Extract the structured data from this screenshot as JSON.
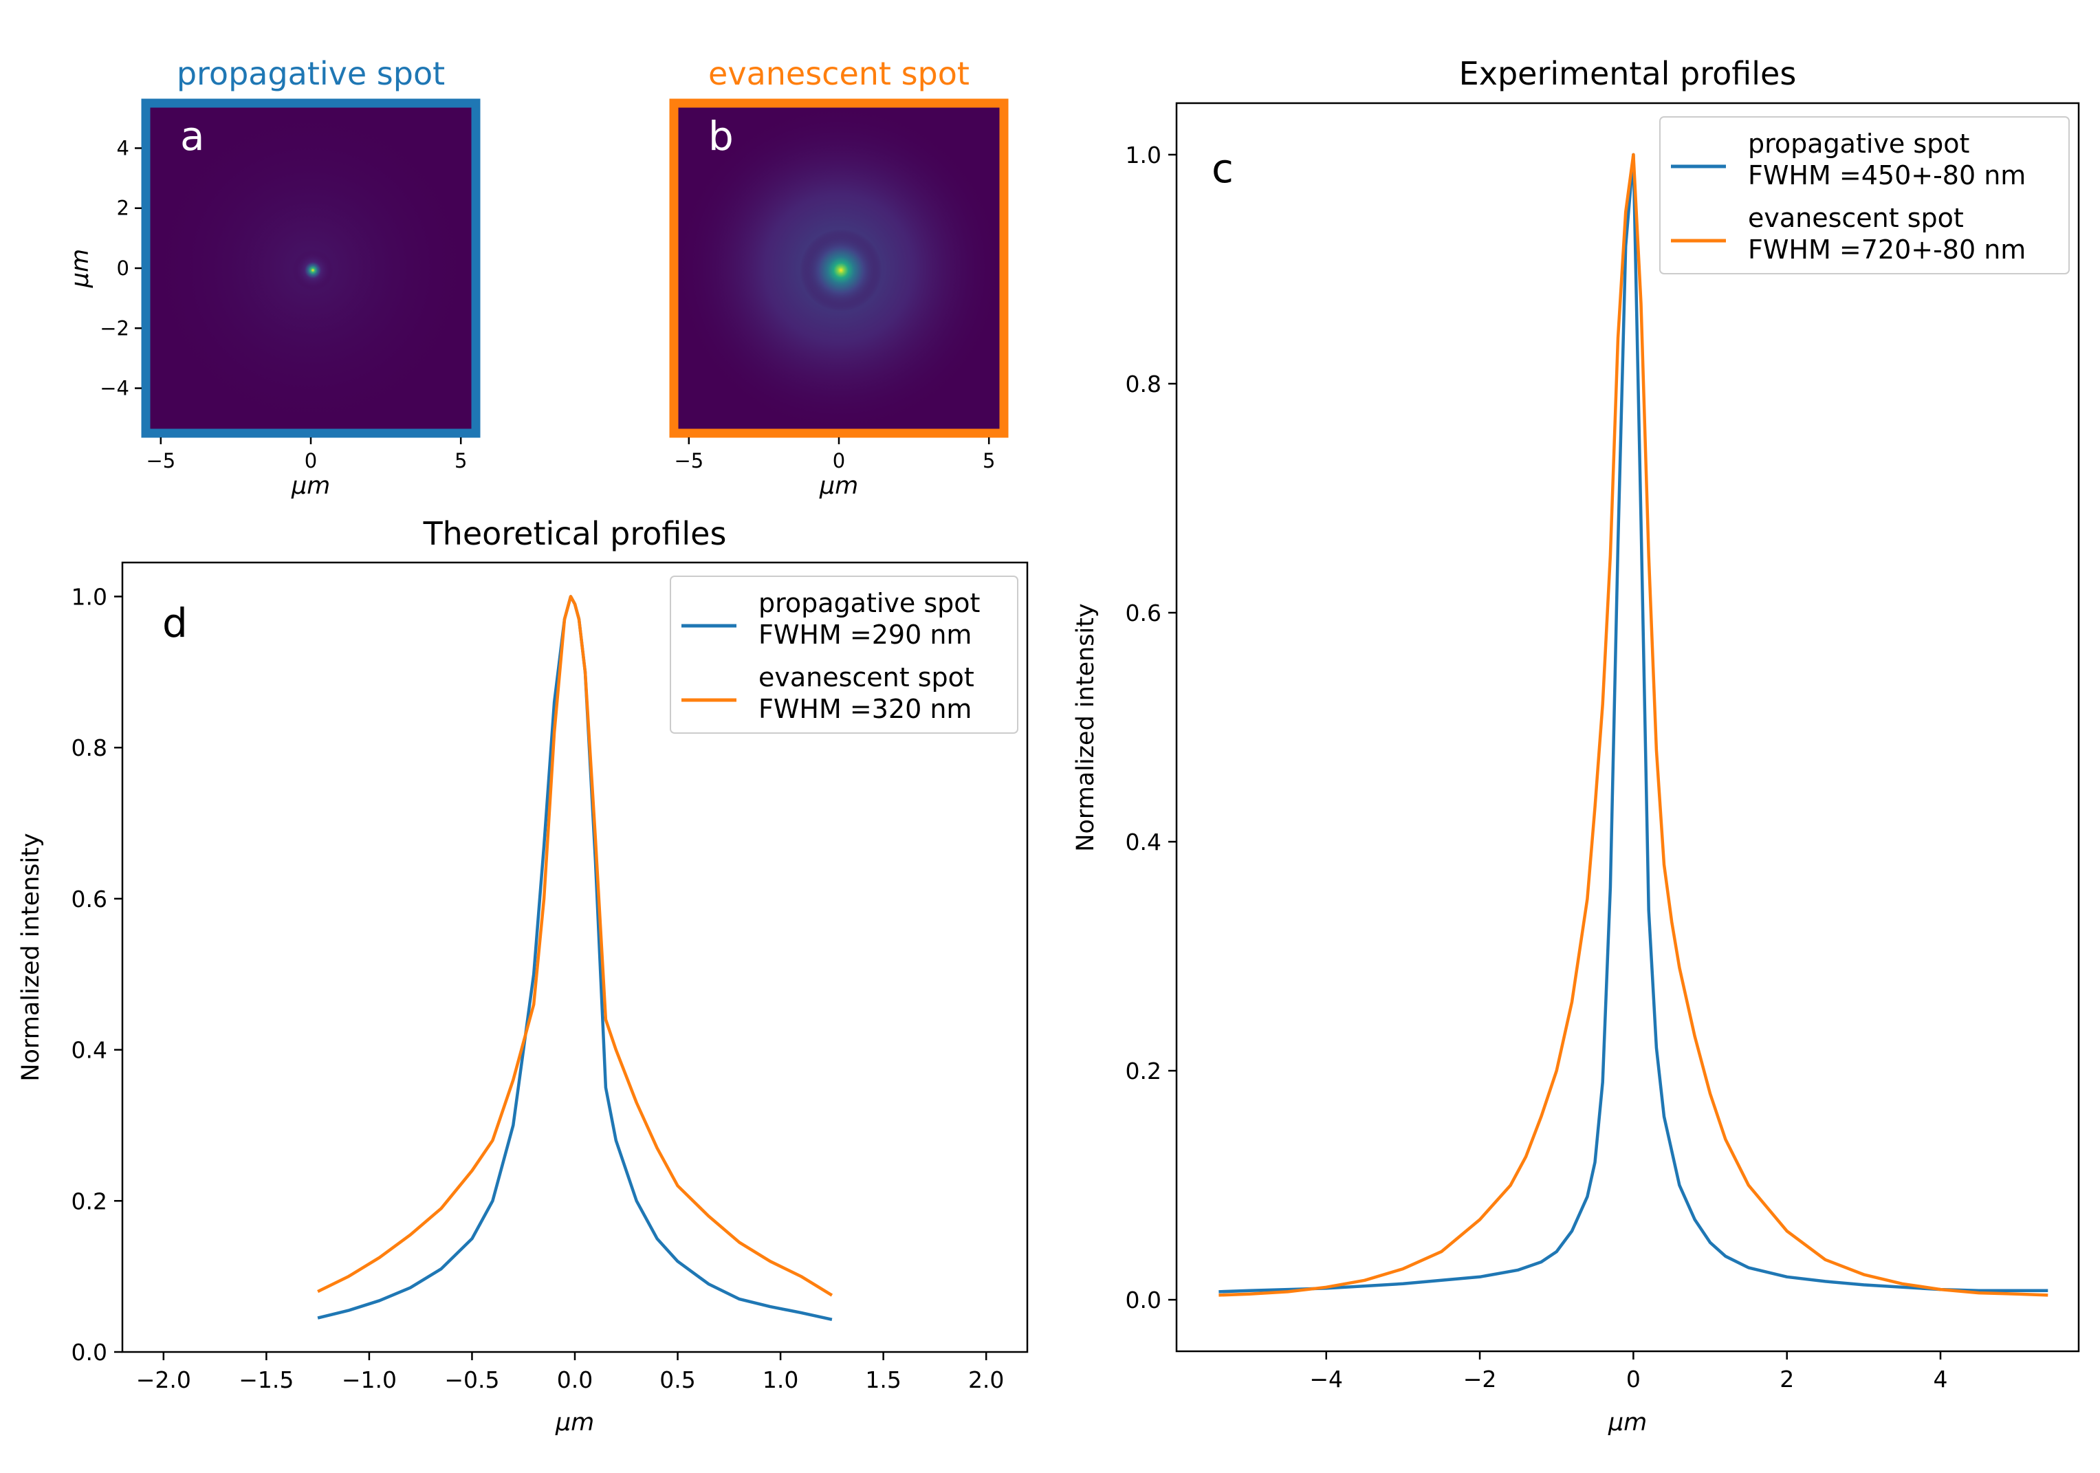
{
  "chart_data": [
    {
      "panel": "a",
      "type": "heatmap",
      "title": "propagative spot",
      "title_color": "#1f77b4",
      "xlabel": "μm",
      "ylabel": "μm",
      "xlim": [
        -5.5,
        5.5
      ],
      "ylim": [
        -5.5,
        5.5
      ],
      "xticks": [
        -5,
        0,
        5
      ],
      "yticks": [
        -4,
        -2,
        0,
        2,
        4
      ],
      "xtick_labels": [
        "−5",
        "0",
        "5"
      ],
      "ytick_labels": [
        "−4",
        "−2",
        "0",
        "2",
        "4"
      ],
      "spot": {
        "x": 0.05,
        "y": -0.1,
        "sigma": 0.25,
        "halo_sigma": 1.5,
        "halo_strength": 0.06
      },
      "colormap": "viridis",
      "frame_color": "#1f77b4"
    },
    {
      "panel": "b",
      "type": "heatmap",
      "title": "evanescent spot",
      "title_color": "#ff7f0e",
      "xlabel": "μm",
      "xlim": [
        -5.5,
        5.5
      ],
      "ylim": [
        -5.5,
        5.5
      ],
      "xticks": [
        -5,
        0,
        5
      ],
      "xtick_labels": [
        "−5",
        "0",
        "5"
      ],
      "spot": {
        "x": 0.05,
        "y": -0.1,
        "sigma": 0.35,
        "halo_sigma": 1.8,
        "halo_strength": 0.35
      },
      "colormap": "viridis",
      "frame_color": "#ff7f0e"
    },
    {
      "panel": "c",
      "type": "line",
      "title": "Experimental profiles",
      "xlabel": "μm",
      "ylabel": "Normalized intensity",
      "xlim": [
        -5.95,
        5.8
      ],
      "ylim": [
        -0.045,
        1.045
      ],
      "xticks": [
        -4,
        -2,
        0,
        2,
        4
      ],
      "xtick_labels": [
        "−4",
        "−2",
        "0",
        "2",
        "4"
      ],
      "yticks": [
        0.0,
        0.2,
        0.4,
        0.6,
        0.8,
        1.0
      ],
      "ytick_labels": [
        "0.0",
        "0.2",
        "0.4",
        "0.6",
        "0.8",
        "1.0"
      ],
      "grid": false,
      "legend_position": "upper right",
      "series": [
        {
          "name": "propagative spot\nFWHM =450+-80 nm",
          "color": "#1f77b4",
          "x": [
            -5.4,
            -5.0,
            -4.5,
            -4.0,
            -3.5,
            -3.0,
            -2.5,
            -2.0,
            -1.5,
            -1.2,
            -1.0,
            -0.8,
            -0.6,
            -0.5,
            -0.4,
            -0.3,
            -0.2,
            -0.1,
            0.0,
            0.1,
            0.2,
            0.3,
            0.4,
            0.5,
            0.6,
            0.8,
            1.0,
            1.2,
            1.5,
            2.0,
            2.5,
            3.0,
            3.5,
            4.0,
            4.5,
            5.0,
            5.4
          ],
          "y": [
            0.007,
            0.008,
            0.009,
            0.01,
            0.012,
            0.014,
            0.017,
            0.02,
            0.026,
            0.033,
            0.042,
            0.06,
            0.09,
            0.12,
            0.19,
            0.36,
            0.66,
            0.92,
            1.0,
            0.68,
            0.34,
            0.22,
            0.16,
            0.13,
            0.1,
            0.07,
            0.05,
            0.038,
            0.028,
            0.02,
            0.016,
            0.013,
            0.011,
            0.009,
            0.008,
            0.008,
            0.008
          ]
        },
        {
          "name": "evanescent spot\nFWHM =720+-80 nm",
          "color": "#ff7f0e",
          "x": [
            -5.4,
            -5.0,
            -4.5,
            -4.0,
            -3.5,
            -3.0,
            -2.5,
            -2.0,
            -1.6,
            -1.4,
            -1.2,
            -1.0,
            -0.8,
            -0.6,
            -0.5,
            -0.4,
            -0.3,
            -0.2,
            -0.1,
            0.0,
            0.1,
            0.2,
            0.3,
            0.4,
            0.5,
            0.6,
            0.8,
            1.0,
            1.2,
            1.5,
            2.0,
            2.5,
            3.0,
            3.5,
            4.0,
            4.5,
            5.0,
            5.4
          ],
          "y": [
            0.004,
            0.005,
            0.007,
            0.011,
            0.017,
            0.027,
            0.042,
            0.07,
            0.1,
            0.125,
            0.16,
            0.2,
            0.26,
            0.35,
            0.43,
            0.52,
            0.65,
            0.84,
            0.95,
            1.0,
            0.87,
            0.65,
            0.48,
            0.38,
            0.33,
            0.29,
            0.23,
            0.18,
            0.14,
            0.1,
            0.06,
            0.035,
            0.022,
            0.014,
            0.009,
            0.006,
            0.005,
            0.004
          ]
        }
      ]
    },
    {
      "panel": "d",
      "type": "line",
      "title": "Theoretical profiles",
      "xlabel": "μm",
      "ylabel": "Normalized intensity",
      "xlim": [
        -2.2,
        2.2
      ],
      "ylim": [
        -0.0,
        1.045
      ],
      "xticks": [
        -2.0,
        -1.5,
        -1.0,
        -0.5,
        0.0,
        0.5,
        1.0,
        1.5,
        2.0
      ],
      "xtick_labels": [
        "−2.0",
        "−1.5",
        "−1.0",
        "−0.5",
        "0.0",
        "0.5",
        "1.0",
        "1.5",
        "2.0"
      ],
      "yticks": [
        0.0,
        0.2,
        0.4,
        0.6,
        0.8,
        1.0
      ],
      "ytick_labels": [
        "0.0",
        "0.2",
        "0.4",
        "0.6",
        "0.8",
        "1.0"
      ],
      "grid": false,
      "legend_position": "upper right",
      "series": [
        {
          "name": "propagative spot\nFWHM =290 nm",
          "color": "#1f77b4",
          "x": [
            -1.25,
            -1.1,
            -0.95,
            -0.8,
            -0.65,
            -0.5,
            -0.4,
            -0.3,
            -0.2,
            -0.15,
            -0.1,
            -0.05,
            -0.02,
            0.0,
            0.02,
            0.05,
            0.1,
            0.15,
            0.2,
            0.3,
            0.4,
            0.5,
            0.65,
            0.8,
            0.95,
            1.1,
            1.25
          ],
          "y": [
            0.045,
            0.055,
            0.068,
            0.085,
            0.11,
            0.15,
            0.2,
            0.3,
            0.5,
            0.67,
            0.86,
            0.97,
            1.0,
            0.99,
            0.97,
            0.9,
            0.65,
            0.35,
            0.28,
            0.2,
            0.15,
            0.12,
            0.09,
            0.07,
            0.06,
            0.052,
            0.043
          ]
        },
        {
          "name": "evanescent spot\nFWHM =320 nm",
          "color": "#ff7f0e",
          "x": [
            -1.25,
            -1.1,
            -0.95,
            -0.8,
            -0.65,
            -0.5,
            -0.4,
            -0.3,
            -0.2,
            -0.15,
            -0.1,
            -0.05,
            -0.02,
            0.0,
            0.02,
            0.05,
            0.1,
            0.15,
            0.2,
            0.3,
            0.4,
            0.5,
            0.65,
            0.8,
            0.95,
            1.1,
            1.25
          ],
          "y": [
            0.08,
            0.1,
            0.125,
            0.155,
            0.19,
            0.24,
            0.28,
            0.36,
            0.46,
            0.6,
            0.82,
            0.97,
            1.0,
            0.99,
            0.97,
            0.9,
            0.68,
            0.44,
            0.4,
            0.33,
            0.27,
            0.22,
            0.18,
            0.145,
            0.12,
            0.1,
            0.075
          ]
        }
      ]
    }
  ],
  "panel_labels": {
    "a": "a",
    "b": "b",
    "c": "c",
    "d": "d"
  }
}
